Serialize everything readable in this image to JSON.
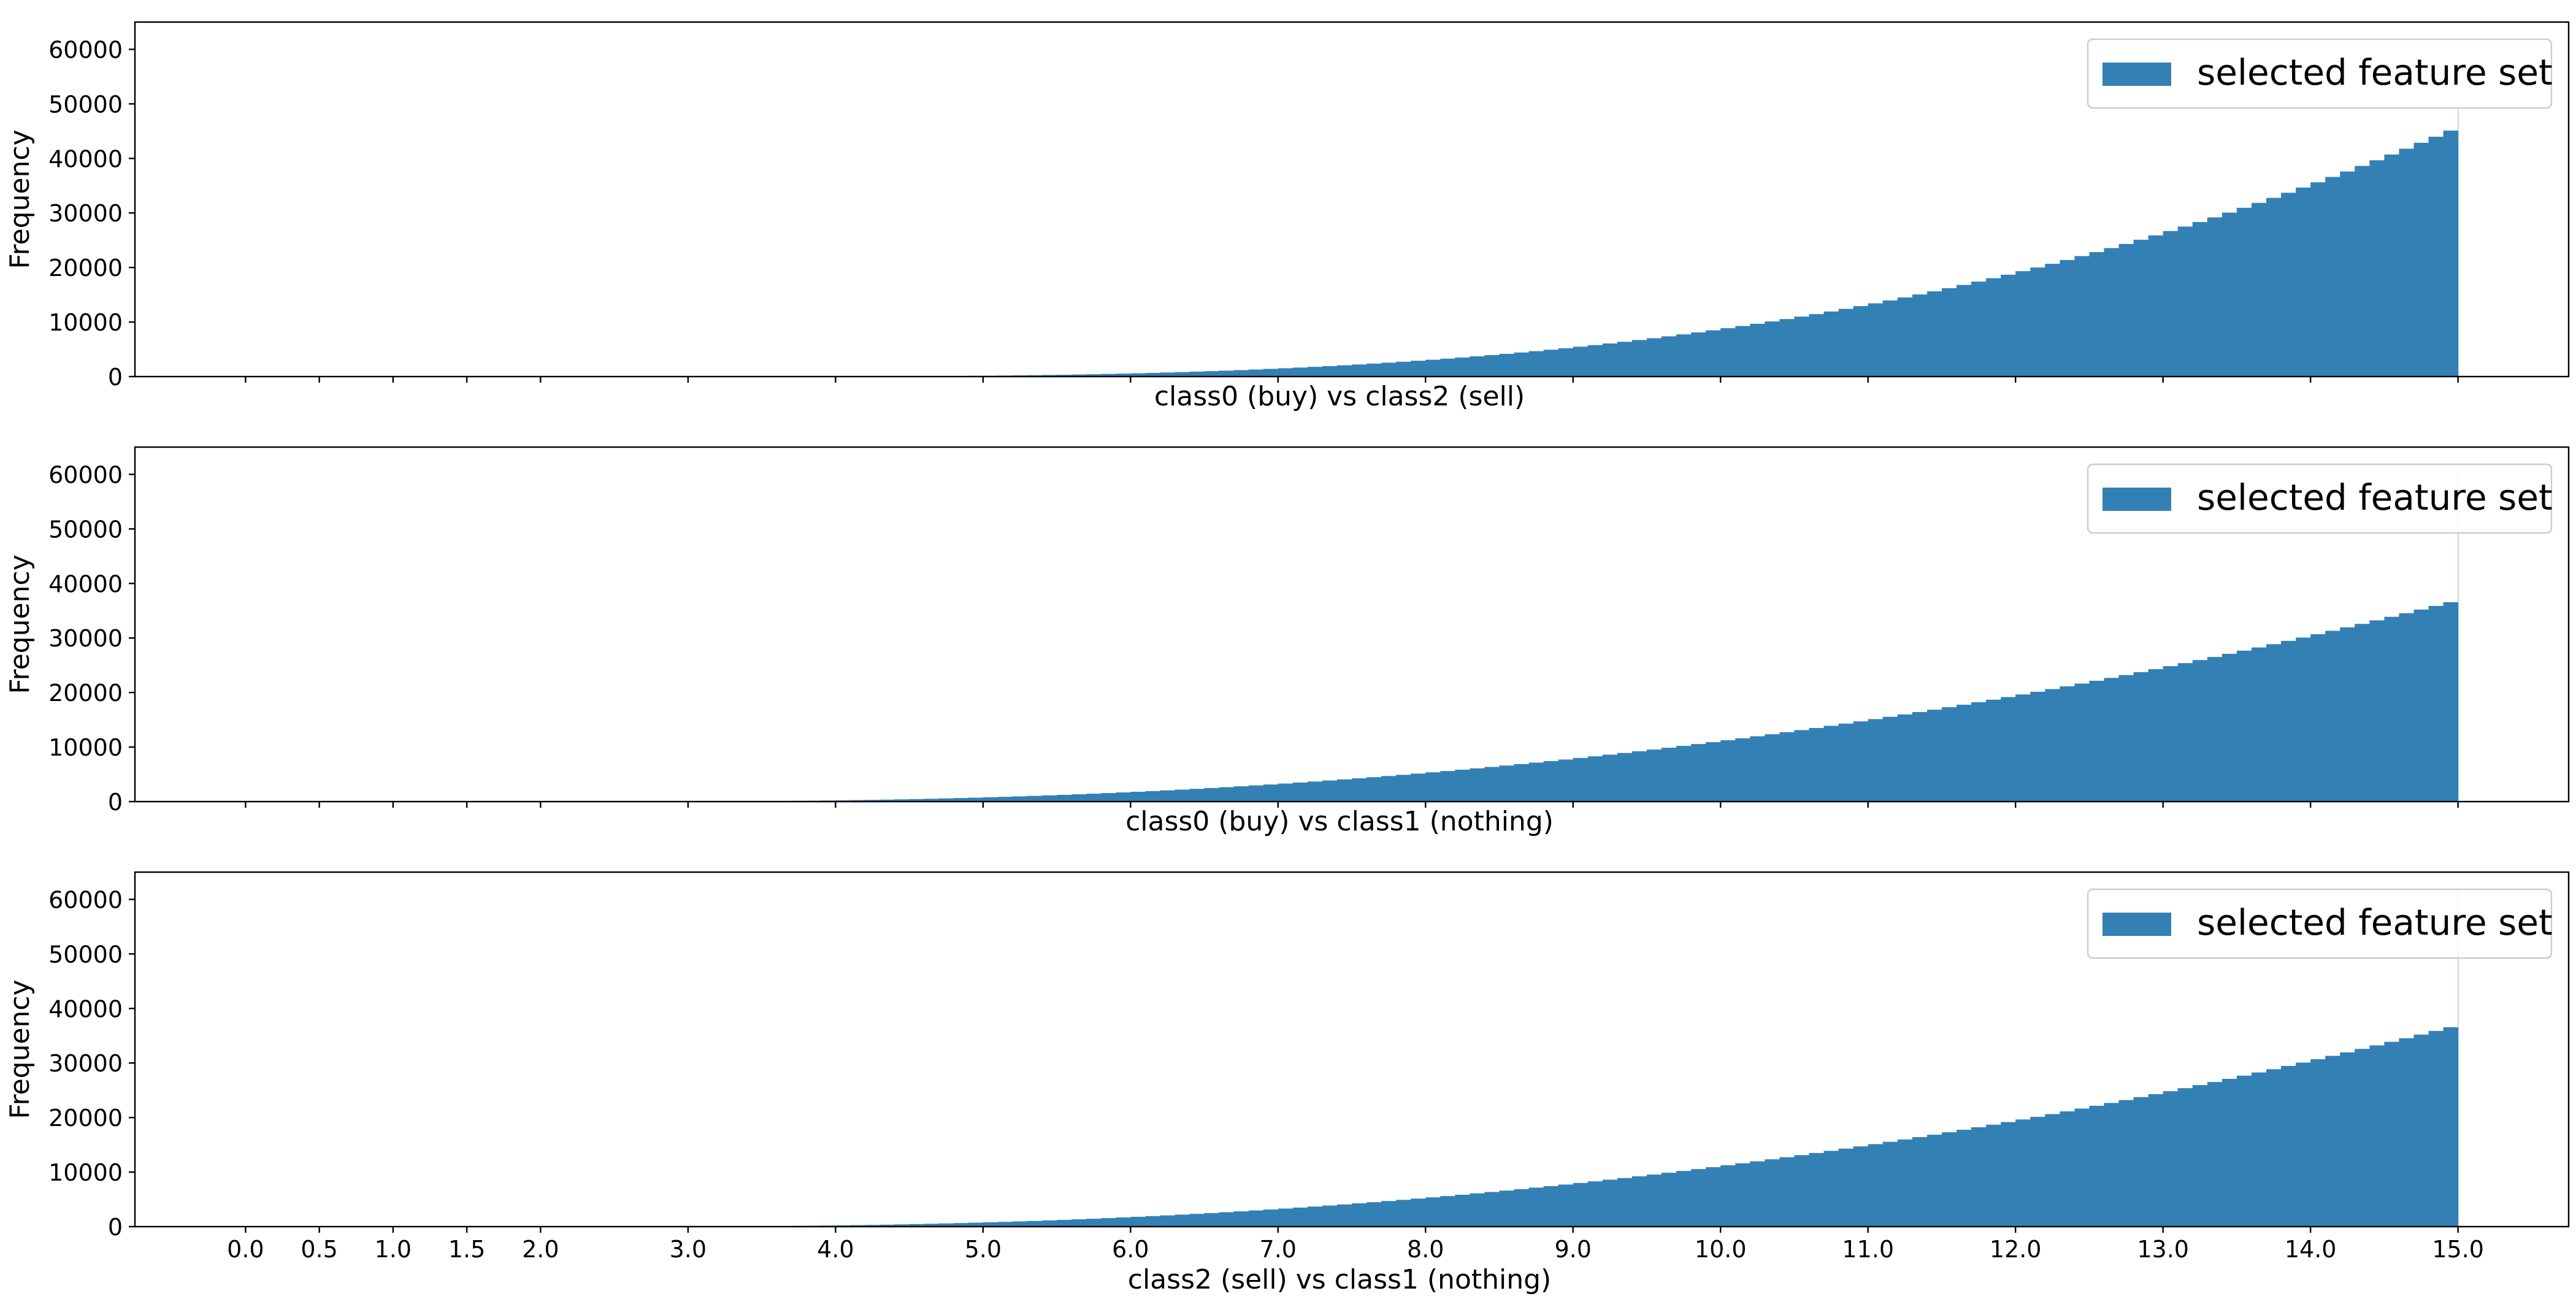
{
  "figure": {
    "legend_label": "selected feature set"
  },
  "chart_data": [
    {
      "type": "bar",
      "subtype": "histogram",
      "title": "",
      "xlabel": "class0 (buy) vs class2 (sell)",
      "ylabel": "Frequency",
      "xlim": [
        -0.75,
        15.75
      ],
      "ylim": [
        0,
        65000
      ],
      "x_ticks": [
        0.0,
        0.5,
        1.0,
        1.5,
        2.0,
        3.0,
        4.0,
        5.0,
        6.0,
        7.0,
        8.0,
        9.0,
        10.0,
        11.0,
        12.0,
        13.0,
        14.0,
        15.0
      ],
      "x_tick_labels_visible": false,
      "y_ticks": [
        0,
        10000,
        20000,
        30000,
        40000,
        50000,
        60000
      ],
      "bin_range": [
        3.5,
        15.0
      ],
      "bin_width": 0.1,
      "series": [
        {
          "name": "selected feature set",
          "values": [
            2,
            3,
            5,
            8,
            12,
            17,
            23,
            31,
            40,
            51,
            64,
            79,
            96,
            116,
            138,
            163,
            191,
            222,
            256,
            294,
            335,
            380,
            430,
            484,
            542,
            604,
            672,
            745,
            823,
            906,
            995,
            1090,
            1190,
            1296,
            1408,
            1527,
            1652,
            1783,
            1922,
            2067,
            2219,
            2378,
            2545,
            2720,
            2902,
            3092,
            3291,
            3498,
            3713,
            3937,
            4170,
            4413,
            4665,
            4926,
            5197,
            5477,
            5768,
            6069,
            6380,
            6702,
            7035,
            7379,
            7734,
            8101,
            8478,
            8868,
            9269,
            9682,
            10107,
            10545,
            10995,
            11457,
            11932,
            12420,
            12921,
            13435,
            13963,
            14504,
            15058,
            15626,
            16208,
            16804,
            17414,
            18038,
            18677,
            19330,
            19998,
            20680,
            21378,
            22090,
            22818,
            23560,
            24318,
            25092,
            25881,
            26686,
            27507,
            28343,
            29196,
            30065,
            30950,
            31851,
            32769,
            33703,
            34654,
            35622,
            36606,
            37607,
            38626,
            39662,
            40715,
            41785,
            42873,
            43978,
            45102,
            49500
          ]
        }
      ],
      "legend": "top-right",
      "color": "#3380B5"
    },
    {
      "type": "bar",
      "subtype": "histogram",
      "title": "",
      "xlabel": "class0 (buy) vs class1 (nothing)",
      "ylabel": "Frequency",
      "xlim": [
        -0.75,
        15.75
      ],
      "ylim": [
        0,
        65000
      ],
      "x_ticks": [
        0.0,
        0.5,
        1.0,
        1.5,
        2.0,
        3.0,
        4.0,
        5.0,
        6.0,
        7.0,
        8.0,
        9.0,
        10.0,
        11.0,
        12.0,
        13.0,
        14.0,
        15.0
      ],
      "x_tick_labels_visible": false,
      "y_ticks": [
        0,
        10000,
        20000,
        30000,
        40000,
        50000,
        60000
      ],
      "bin_range": [
        3.0,
        15.0
      ],
      "bin_width": 0.1,
      "series": [
        {
          "name": "selected feature set",
          "values": [
            20,
            30,
            42,
            56,
            73,
            93,
            115,
            141,
            169,
            201,
            236,
            275,
            317,
            363,
            413,
            467,
            525,
            587,
            653,
            723,
            798,
            877,
            961,
            1049,
            1142,
            1240,
            1343,
            1450,
            1562,
            1680,
            1802,
            1930,
            2062,
            2200,
            2343,
            2491,
            2645,
            2803,
            2967,
            3137,
            3312,
            3492,
            3678,
            3870,
            4067,
            4270,
            4478,
            4692,
            4912,
            5138,
            5369,
            5606,
            5849,
            6098,
            6353,
            6614,
            6880,
            7153,
            7432,
            7716,
            8007,
            8304,
            8607,
            8916,
            9231,
            9552,
            9880,
            10214,
            10554,
            10900,
            11253,
            11612,
            11977,
            12348,
            12726,
            13111,
            13501,
            13898,
            14302,
            14712,
            15128,
            15551,
            15980,
            16416,
            16858,
            17307,
            17762,
            18224,
            18693,
            19168,
            19650,
            20138,
            20633,
            21135,
            21643,
            22158,
            22680,
            23208,
            23743,
            24285,
            24834,
            25389,
            25951,
            26520,
            27096,
            27679,
            28268,
            28865,
            29468,
            30078,
            30695,
            31319,
            31950,
            32588,
            33233,
            33885,
            34544,
            35210,
            35883,
            36563,
            60500
          ]
        }
      ],
      "legend": "top-right",
      "color": "#3380B5"
    },
    {
      "type": "bar",
      "subtype": "histogram",
      "title": "",
      "xlabel": "class2 (sell) vs class1 (nothing)",
      "ylabel": "Frequency",
      "xlim": [
        -0.75,
        15.75
      ],
      "ylim": [
        0,
        65000
      ],
      "x_ticks": [
        0.0,
        0.5,
        1.0,
        1.5,
        2.0,
        3.0,
        4.0,
        5.0,
        6.0,
        7.0,
        8.0,
        9.0,
        10.0,
        11.0,
        12.0,
        13.0,
        14.0,
        15.0
      ],
      "x_tick_labels": [
        "0.0",
        "0.5",
        "1.0",
        "1.5",
        "2.0",
        "3.0",
        "4.0",
        "5.0",
        "6.0",
        "7.0",
        "8.0",
        "9.0",
        "10.0",
        "11.0",
        "12.0",
        "13.0",
        "14.0",
        "15.0"
      ],
      "x_tick_labels_visible": true,
      "y_ticks": [
        0,
        10000,
        20000,
        30000,
        40000,
        50000,
        60000
      ],
      "bin_range": [
        3.0,
        15.0
      ],
      "bin_width": 0.1,
      "series": [
        {
          "name": "selected feature set",
          "values": [
            20,
            30,
            42,
            56,
            73,
            93,
            115,
            141,
            169,
            201,
            236,
            275,
            317,
            363,
            413,
            467,
            525,
            587,
            653,
            723,
            798,
            877,
            961,
            1049,
            1142,
            1240,
            1343,
            1450,
            1562,
            1680,
            1802,
            1930,
            2062,
            2200,
            2343,
            2491,
            2645,
            2803,
            2967,
            3137,
            3312,
            3492,
            3678,
            3870,
            4067,
            4270,
            4478,
            4692,
            4912,
            5138,
            5369,
            5606,
            5849,
            6098,
            6353,
            6614,
            6880,
            7153,
            7432,
            7716,
            8007,
            8304,
            8607,
            8916,
            9231,
            9552,
            9880,
            10214,
            10554,
            10900,
            11253,
            11612,
            11977,
            12348,
            12726,
            13111,
            13501,
            13898,
            14302,
            14712,
            15128,
            15551,
            15980,
            16416,
            16858,
            17307,
            17762,
            18224,
            18693,
            19168,
            19650,
            20138,
            20633,
            21135,
            21643,
            22158,
            22680,
            23208,
            23743,
            24285,
            24834,
            25389,
            25951,
            26520,
            27096,
            27679,
            28268,
            28865,
            29468,
            30078,
            30695,
            31319,
            31950,
            32588,
            33233,
            33885,
            34544,
            35210,
            35883,
            36563,
            61800
          ]
        }
      ],
      "legend": "top-right",
      "color": "#3380B5"
    }
  ]
}
